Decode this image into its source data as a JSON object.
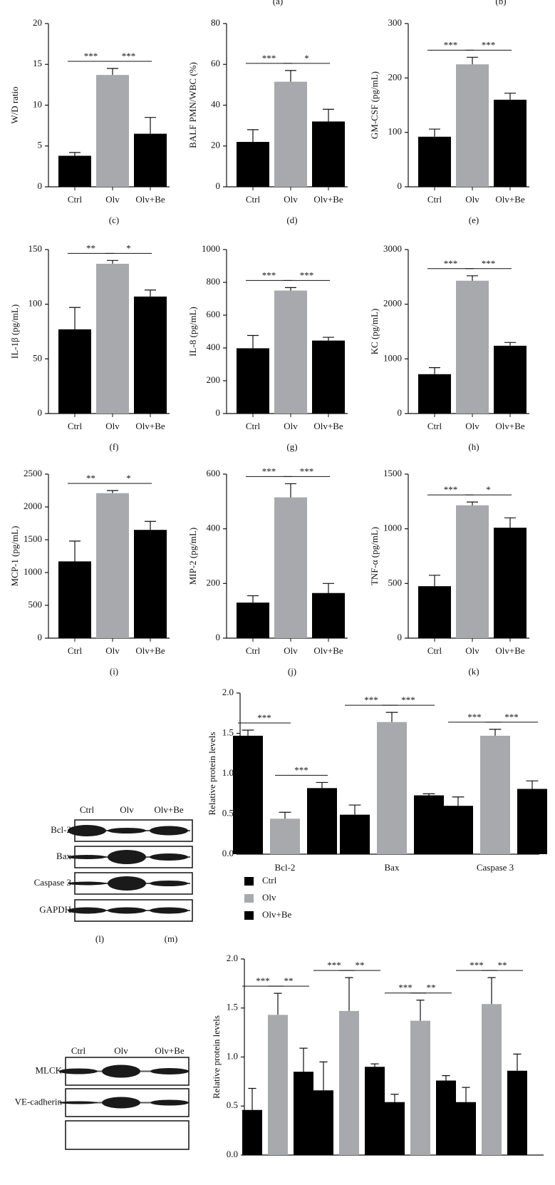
{
  "top_captions": [
    "(a)",
    "(b)"
  ],
  "blots": [
    {
      "caption": "(l)",
      "lanes": [
        "Ctrl",
        "Olv",
        "Olv+Be"
      ],
      "rows": [
        "Bcl-2",
        "Bax",
        "Caspase 3",
        "GAPDH"
      ]
    },
    {
      "lanes": [
        "Ctrl",
        "Olv",
        "Olv+Be"
      ],
      "rows": [
        "MLCK",
        "VE-cadherin"
      ]
    }
  ],
  "chart_data": [
    {
      "type": "bar",
      "caption": "(c)",
      "ylabel": "W/D ratio",
      "categories": [
        "Ctrl",
        "Olv",
        "Olv+Be"
      ],
      "values": [
        3.8,
        13.7,
        6.5
      ],
      "errors": [
        0.4,
        0.8,
        2.0
      ],
      "colors": [
        "#000000",
        "#a7a9ac",
        "#000000"
      ],
      "ylim": [
        0,
        20
      ],
      "yticks": [
        0,
        5,
        10,
        15,
        20
      ],
      "annotations": [
        "***",
        "***"
      ]
    },
    {
      "type": "bar",
      "caption": "(d)",
      "ylabel": "BALF PMN/WBC (%)",
      "categories": [
        "Ctrl",
        "Olv",
        "Olv+Be"
      ],
      "values": [
        22,
        51.5,
        32
      ],
      "errors": [
        6,
        5.5,
        6
      ],
      "colors": [
        "#000000",
        "#a7a9ac",
        "#000000"
      ],
      "ylim": [
        0,
        80
      ],
      "yticks": [
        0,
        20,
        40,
        60,
        80
      ],
      "annotations": [
        "***",
        "*"
      ]
    },
    {
      "type": "bar",
      "caption": "(e)",
      "ylabel": "GM-CSF (pg/mL)",
      "categories": [
        "Ctrl",
        "Olv",
        "Olv+Be"
      ],
      "values": [
        92,
        225,
        160
      ],
      "errors": [
        14,
        13,
        12
      ],
      "colors": [
        "#000000",
        "#a7a9ac",
        "#000000"
      ],
      "ylim": [
        0,
        300
      ],
      "yticks": [
        0,
        100,
        200,
        300
      ],
      "annotations": [
        "***",
        "***"
      ]
    },
    {
      "type": "bar",
      "caption": "(f)",
      "ylabel": "IL-1β (pg/mL)",
      "categories": [
        "Ctrl",
        "Olv",
        "Olv+Be"
      ],
      "values": [
        77,
        137,
        107
      ],
      "errors": [
        20,
        3,
        6
      ],
      "colors": [
        "#000000",
        "#a7a9ac",
        "#000000"
      ],
      "ylim": [
        0,
        150
      ],
      "yticks": [
        0,
        50,
        100,
        150
      ],
      "annotations": [
        "**",
        "*"
      ]
    },
    {
      "type": "bar",
      "caption": "(g)",
      "ylabel": "IL-8 (pg/mL)",
      "categories": [
        "Ctrl",
        "Olv",
        "Olv+Be"
      ],
      "values": [
        398,
        750,
        445
      ],
      "errors": [
        78,
        18,
        20
      ],
      "colors": [
        "#000000",
        "#a7a9ac",
        "#000000"
      ],
      "ylim": [
        0,
        1000
      ],
      "yticks": [
        0,
        200,
        400,
        600,
        800,
        1000
      ],
      "annotations": [
        "***",
        "***"
      ]
    },
    {
      "type": "bar",
      "caption": "(h)",
      "ylabel": "KC (pg/mL)",
      "categories": [
        "Ctrl",
        "Olv",
        "Olv+Be"
      ],
      "values": [
        720,
        2430,
        1240
      ],
      "errors": [
        120,
        90,
        60
      ],
      "colors": [
        "#000000",
        "#a7a9ac",
        "#000000"
      ],
      "ylim": [
        0,
        3000
      ],
      "yticks": [
        0,
        1000,
        2000,
        3000
      ],
      "annotations": [
        "***",
        "***"
      ]
    },
    {
      "type": "bar",
      "caption": "(i)",
      "ylabel": "MCP-1 (pg/mL)",
      "categories": [
        "Ctrl",
        "Olv",
        "Olv+Be"
      ],
      "values": [
        1170,
        2210,
        1650
      ],
      "errors": [
        310,
        40,
        130
      ],
      "colors": [
        "#000000",
        "#a7a9ac",
        "#000000"
      ],
      "ylim": [
        0,
        2500
      ],
      "yticks": [
        0,
        500,
        1000,
        1500,
        2000,
        2500
      ],
      "annotations": [
        "**",
        "*"
      ]
    },
    {
      "type": "bar",
      "caption": "(j)",
      "ylabel": "MIP-2 (pg/mL)",
      "categories": [
        "Ctrl",
        "Olv",
        "Olv+Be"
      ],
      "values": [
        130,
        515,
        165
      ],
      "errors": [
        25,
        50,
        35
      ],
      "colors": [
        "#000000",
        "#a7a9ac",
        "#000000"
      ],
      "ylim": [
        0,
        600
      ],
      "yticks": [
        0,
        200,
        400,
        600
      ],
      "annotations": [
        "***",
        "***"
      ]
    },
    {
      "type": "bar",
      "caption": "(k)",
      "ylabel": "TNF-α (pg/mL)",
      "categories": [
        "Ctrl",
        "Olv",
        "Olv+Be"
      ],
      "values": [
        475,
        1215,
        1010
      ],
      "errors": [
        100,
        30,
        90
      ],
      "colors": [
        "#000000",
        "#a7a9ac",
        "#000000"
      ],
      "ylim": [
        0,
        1500
      ],
      "yticks": [
        0,
        500,
        1000,
        1500
      ],
      "annotations": [
        "***",
        "*"
      ]
    },
    {
      "type": "grouped-bar",
      "caption": "(m)",
      "ylabel": "Relative protein levels",
      "categories": [
        "Bcl-2",
        "Bax",
        "Caspase 3"
      ],
      "series": [
        {
          "name": "Ctrl",
          "color": "#000000",
          "values": [
            1.47,
            0.49,
            0.6
          ],
          "errors": [
            0.07,
            0.12,
            0.11
          ]
        },
        {
          "name": "Olv",
          "color": "#a7a9ac",
          "values": [
            0.44,
            1.64,
            1.47
          ],
          "errors": [
            0.08,
            0.12,
            0.08
          ]
        },
        {
          "name": "Olv+Be",
          "color": "#000000",
          "values": [
            0.82,
            0.73,
            0.81
          ],
          "errors": [
            0.07,
            0.02,
            0.1
          ]
        }
      ],
      "ylim": [
        0,
        2
      ],
      "yticks": [
        {
          "value": 0,
          "label": "0.0"
        },
        0.5,
        {
          "value": 1,
          "label": "1.0"
        },
        1.5,
        {
          "value": 2,
          "label": "2.0"
        }
      ],
      "annotations": [
        [
          "***",
          "***"
        ],
        [
          "***",
          "***"
        ],
        [
          "***",
          "***"
        ]
      ],
      "legend": "bottom-left"
    },
    {
      "type": "grouped-bar",
      "ylabel": "Relative protein levels",
      "categories": [
        null,
        null,
        null,
        null
      ],
      "series": [
        {
          "color": "#000000",
          "values": [
            0.46,
            0.66,
            0.54,
            0.54
          ],
          "errors": [
            0.22,
            0.29,
            0.08,
            0.15
          ]
        },
        {
          "color": "#a7a9ac",
          "values": [
            1.43,
            1.47,
            1.37,
            1.54
          ],
          "errors": [
            0.22,
            0.34,
            0.21,
            0.27
          ]
        },
        {
          "color": "#000000",
          "values": [
            0.85,
            0.9,
            0.76,
            0.86
          ],
          "errors": [
            0.24,
            0.03,
            0.05,
            0.17
          ]
        }
      ],
      "ylim": [
        0,
        2
      ],
      "yticks": [
        {
          "value": 0,
          "label": "0.0"
        },
        0.5,
        {
          "value": 1,
          "label": "1.0"
        },
        1.5,
        {
          "value": 2,
          "label": "2.0"
        }
      ],
      "annotations": [
        [
          "***",
          "**"
        ],
        [
          "***",
          "**"
        ],
        [
          "***",
          "**"
        ],
        [
          "***",
          "**"
        ]
      ]
    }
  ]
}
